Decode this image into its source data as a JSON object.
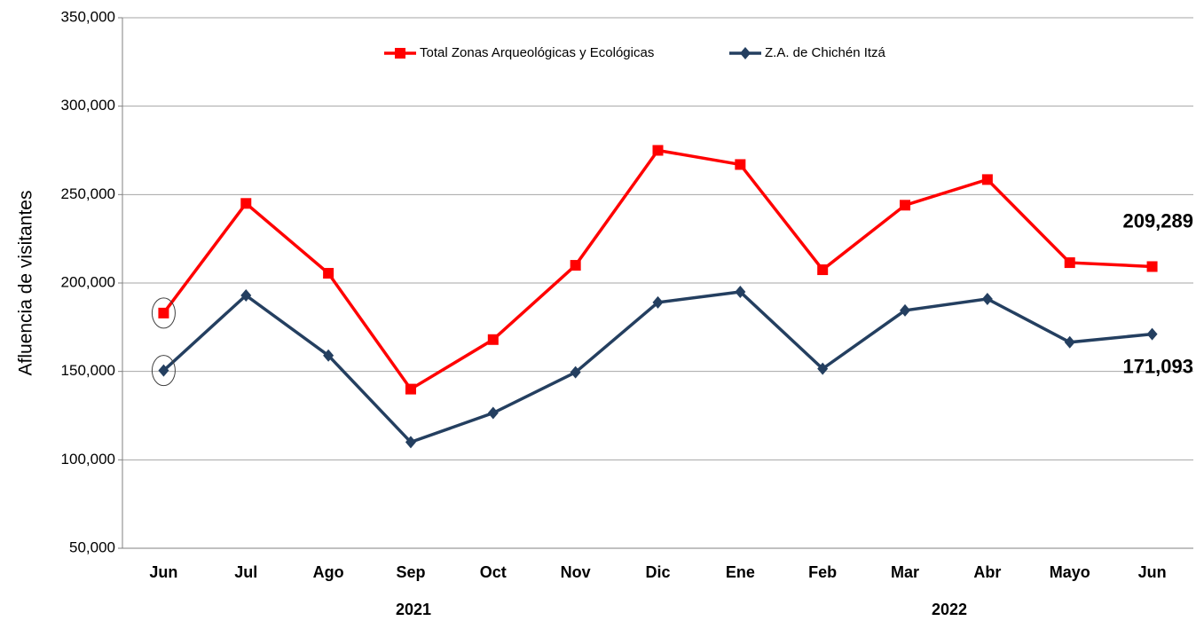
{
  "chart_data": {
    "type": "line",
    "y_label": "Afluencia de visitantes",
    "categories": [
      "Jun",
      "Jul",
      "Ago",
      "Sep",
      "Oct",
      "Nov",
      "Dic",
      "Ene",
      "Feb",
      "Mar",
      "Abr",
      "Mayo",
      "Jun"
    ],
    "year_labels": [
      "2021",
      "2022"
    ],
    "series": [
      {
        "name": "Total Zonas Arqueológicas y Ecológicas",
        "color": "#ff0000",
        "marker": "square",
        "values": [
          183000,
          245000,
          205500,
          140000,
          168000,
          210000,
          275000,
          267000,
          207500,
          244000,
          258500,
          211500,
          209289
        ],
        "value_labels": [
          null,
          null,
          null,
          null,
          null,
          null,
          null,
          null,
          null,
          null,
          null,
          null,
          "209,289"
        ]
      },
      {
        "name": "Z.A. de Chichén Itzá",
        "color": "#243f60",
        "marker": "diamond",
        "values": [
          150500,
          193000,
          159000,
          110000,
          126500,
          149500,
          189000,
          195000,
          151500,
          184500,
          191000,
          166500,
          171093
        ],
        "value_labels": [
          null,
          null,
          null,
          null,
          null,
          null,
          null,
          null,
          null,
          null,
          null,
          null,
          "171,093"
        ]
      }
    ],
    "ylim": [
      50000,
      350000
    ],
    "yticks": [
      {
        "value": 50000,
        "label": "50,000"
      },
      {
        "value": 100000,
        "label": "100,000"
      },
      {
        "value": 150000,
        "label": "150,000"
      },
      {
        "value": 200000,
        "label": "200,000"
      },
      {
        "value": 250000,
        "label": "250,000"
      },
      {
        "value": 300000,
        "label": "300,000"
      },
      {
        "value": 350000,
        "label": "350,000"
      }
    ],
    "grid": true,
    "legend": "top"
  }
}
